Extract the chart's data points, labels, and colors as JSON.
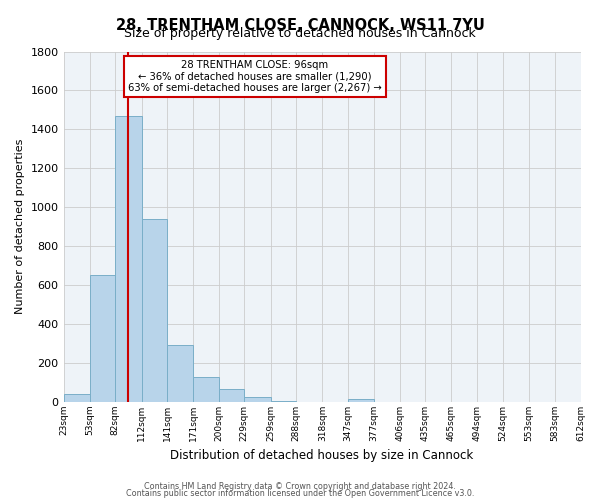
{
  "title": "28, TRENTHAM CLOSE, CANNOCK, WS11 7YU",
  "subtitle": "Size of property relative to detached houses in Cannock",
  "xlabel": "Distribution of detached houses by size in Cannock",
  "ylabel": "Number of detached properties",
  "bins": [
    23,
    53,
    82,
    112,
    141,
    171,
    200,
    229,
    259,
    288,
    318,
    347,
    377,
    406,
    435,
    465,
    494,
    524,
    553,
    583,
    612
  ],
  "bin_labels": [
    "23sqm",
    "53sqm",
    "82sqm",
    "112sqm",
    "141sqm",
    "171sqm",
    "200sqm",
    "229sqm",
    "259sqm",
    "288sqm",
    "318sqm",
    "347sqm",
    "377sqm",
    "406sqm",
    "435sqm",
    "465sqm",
    "494sqm",
    "524sqm",
    "553sqm",
    "583sqm",
    "612sqm"
  ],
  "heights": [
    40,
    650,
    1470,
    940,
    295,
    130,
    65,
    25,
    5,
    0,
    0,
    15,
    0,
    0,
    0,
    0,
    0,
    0,
    0,
    0
  ],
  "bar_color": "#b8d4ea",
  "bar_edge_color": "#7aaec8",
  "property_line_x": 96,
  "vline_color": "#cc0000",
  "annotation_title": "28 TRENTHAM CLOSE: 96sqm",
  "annotation_line1": "← 36% of detached houses are smaller (1,290)",
  "annotation_line2": "63% of semi-detached houses are larger (2,267) →",
  "ylim": [
    0,
    1800
  ],
  "yticks": [
    0,
    200,
    400,
    600,
    800,
    1000,
    1200,
    1400,
    1600,
    1800
  ],
  "footer1": "Contains HM Land Registry data © Crown copyright and database right 2024.",
  "footer2": "Contains public sector information licensed under the Open Government Licence v3.0.",
  "bg_color": "#ffffff",
  "grid_color": "#cccccc"
}
